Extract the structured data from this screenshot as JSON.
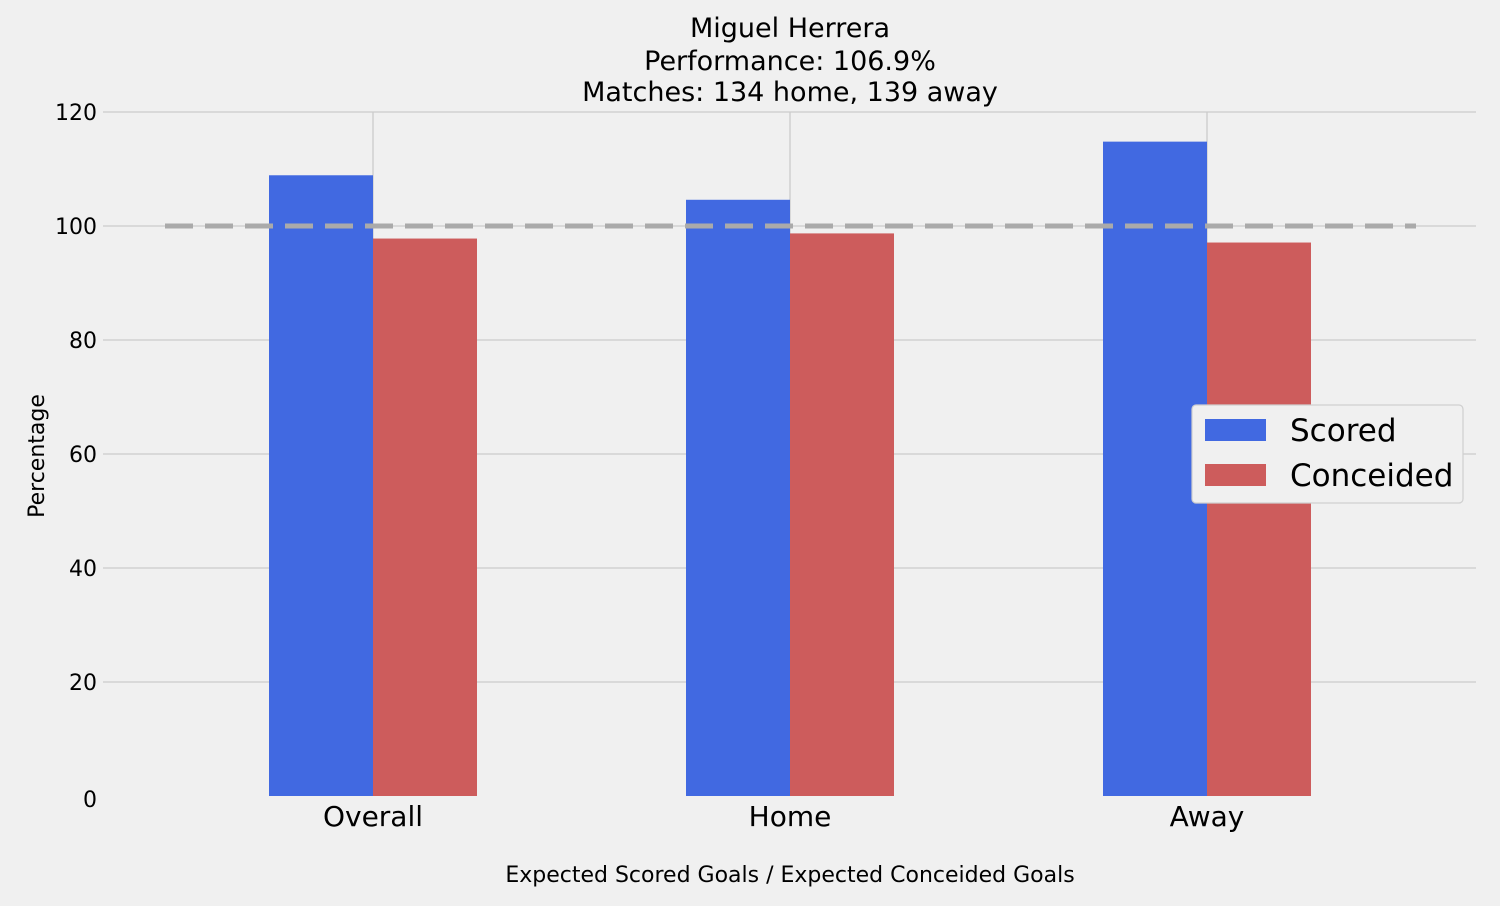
{
  "chart_data": {
    "type": "bar",
    "title_lines": [
      "Miguel Herrera",
      "Performance: 106.9%",
      "Matches: 134 home, 139 away"
    ],
    "xlabel": "Expected Scored Goals / Expected Conceided Goals",
    "ylabel": "Percentage",
    "categories": [
      "Overall",
      "Home",
      "Away"
    ],
    "series": [
      {
        "name": "Scored",
        "color": "#4169e1",
        "values": [
          108.9,
          104.6,
          114.8
        ]
      },
      {
        "name": "Conceided",
        "color": "#cd5c5c",
        "values": [
          97.8,
          98.7,
          97.1
        ]
      }
    ],
    "yticks": [
      "0",
      "20",
      "40",
      "60",
      "80",
      "100",
      "120"
    ],
    "ylim": [
      0,
      120
    ],
    "reference_line": {
      "value": 100,
      "style": "dashed",
      "color": "#aaaaaa"
    },
    "grid": true,
    "legend_position": "center-right",
    "background": "#f0f0f0",
    "grid_color": "#cbcbcb"
  }
}
